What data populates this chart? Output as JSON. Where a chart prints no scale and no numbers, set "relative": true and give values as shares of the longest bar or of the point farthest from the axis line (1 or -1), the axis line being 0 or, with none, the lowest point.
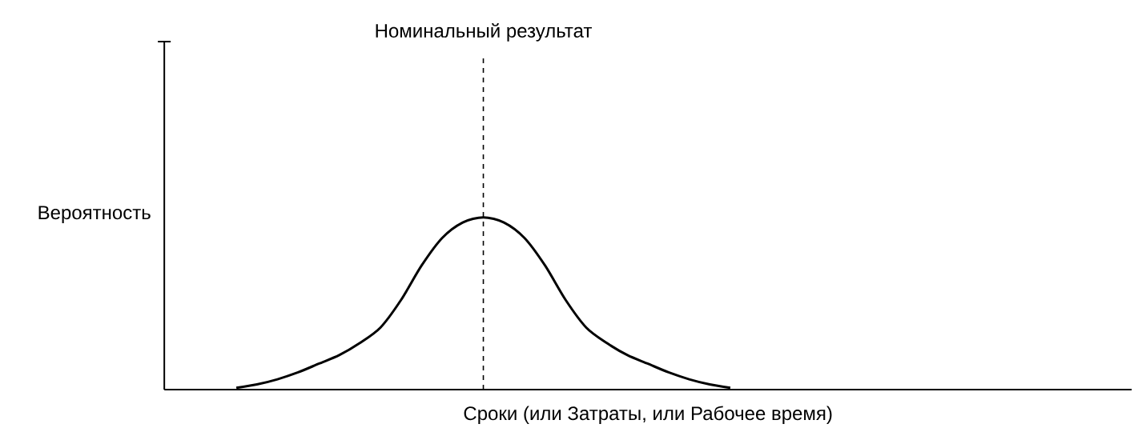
{
  "chart_data": {
    "type": "line",
    "relative": true,
    "xlabel": "Сроки (или Затраты, или Рабочее время)",
    "ylabel": "Вероятность",
    "categories": [
      null,
      null,
      null,
      null,
      null,
      null,
      null,
      null,
      null,
      null,
      null,
      null,
      null,
      null,
      null,
      null,
      null,
      null,
      null,
      null,
      null,
      null,
      null,
      null,
      null,
      null,
      null,
      null,
      null,
      null,
      null,
      null,
      null,
      null,
      null,
      null,
      null,
      null,
      null,
      null,
      null,
      null,
      null,
      null,
      null,
      null,
      null
    ],
    "series": [
      {
        "color": "#000000",
        "values": [
          null,
          null,
          null,
          0.01,
          0.03,
          0.06,
          0.1,
          0.15,
          0.2,
          0.27,
          0.36,
          0.52,
          0.72,
          0.88,
          0.97,
          1.0,
          0.97,
          0.88,
          0.72,
          0.52,
          0.36,
          0.27,
          0.2,
          0.15,
          0.1,
          0.06,
          0.03,
          0.01,
          null,
          null,
          null,
          null,
          null,
          null,
          null,
          null,
          null,
          null,
          null,
          null,
          null,
          null,
          null,
          null,
          null,
          null,
          null
        ]
      }
    ],
    "annotations": [
      "Номинальный результат"
    ]
  }
}
